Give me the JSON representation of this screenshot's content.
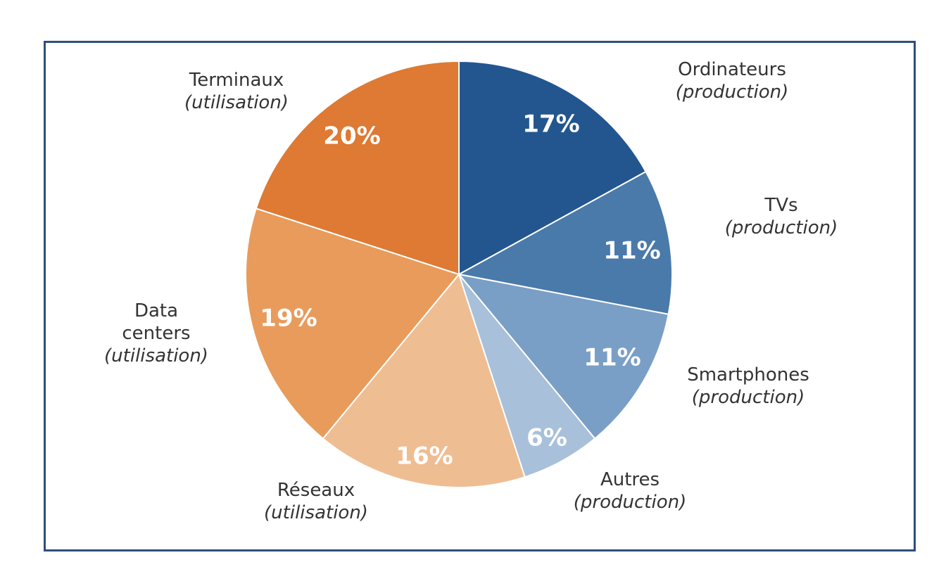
{
  "chart_data": {
    "type": "pie",
    "slices": [
      {
        "name_lines": [
          "Ordinateurs"
        ],
        "note": "(production)",
        "value": 17,
        "label": "17%",
        "color": "#23568f"
      },
      {
        "name_lines": [
          "TVs"
        ],
        "note": "(production)",
        "value": 11,
        "label": "11%",
        "color": "#4a7aaa"
      },
      {
        "name_lines": [
          "Smartphones"
        ],
        "note": "(production)",
        "value": 11,
        "label": "11%",
        "color": "#7a9fc6"
      },
      {
        "name_lines": [
          "Autres"
        ],
        "note": "(production)",
        "value": 6,
        "label": "6%",
        "color": "#a8c0da"
      },
      {
        "name_lines": [
          "Réseaux"
        ],
        "note": "(utilisation)",
        "value": 16,
        "label": "16%",
        "color": "#efbd92"
      },
      {
        "name_lines": [
          "Data",
          "centers"
        ],
        "note": "(utilisation)",
        "value": 19,
        "label": "19%",
        "color": "#e89b5b"
      },
      {
        "name_lines": [
          "Terminaux"
        ],
        "note": "(utilisation)",
        "value": 20,
        "label": "20%",
        "color": "#de7a33"
      }
    ]
  }
}
